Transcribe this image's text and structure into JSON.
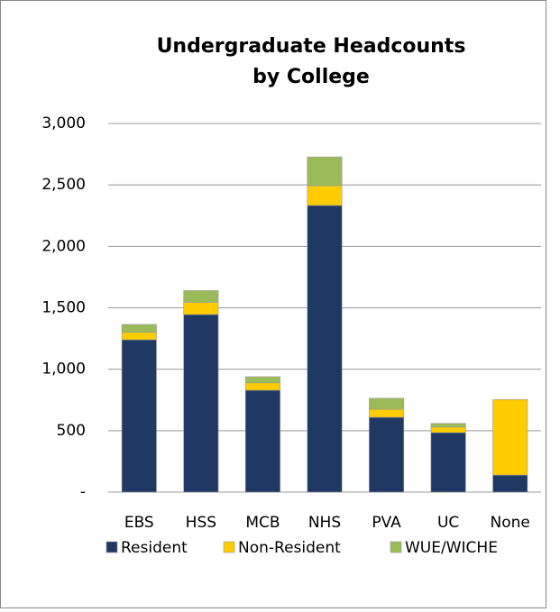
{
  "chart_data": {
    "type": "stacked_bar",
    "title": [
      "Undergraduate Headcounts",
      "by College"
    ],
    "categories": [
      "EBS",
      "HSS",
      "MCB",
      "NHS",
      "PVA",
      "UC",
      "None"
    ],
    "series": [
      {
        "name": "Resident",
        "color": "#1f3864",
        "values": [
          1240,
          1445,
          829,
          2333,
          609,
          484,
          139
        ]
      },
      {
        "name": "Non-Resident",
        "color": "#ffcc00",
        "values": [
          60,
          100,
          60,
          160,
          65,
          45,
          615
        ]
      },
      {
        "name": "WUE/WICHE",
        "color": "#9bbb59",
        "values": [
          65,
          95,
          50,
          235,
          90,
          30,
          0
        ]
      }
    ],
    "ylim": [
      0,
      3000
    ],
    "yticks": [
      {
        "value": 0,
        "label": "-"
      },
      500,
      {
        "value": 1000,
        "label": "1,000"
      },
      {
        "value": 1500,
        "label": "1,500"
      },
      {
        "value": 2000,
        "label": "2,000"
      },
      {
        "value": 2500,
        "label": "2,500"
      },
      {
        "value": 3000,
        "label": "3,000"
      }
    ],
    "grid": true,
    "legend": "bottom"
  }
}
